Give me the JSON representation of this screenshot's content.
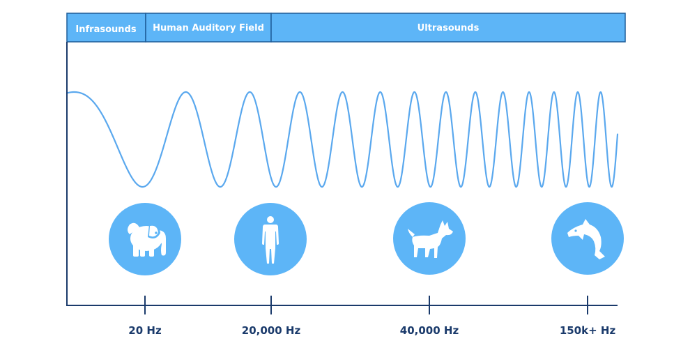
{
  "bands": [
    {
      "label": "Infrasounds"
    },
    {
      "label": "Human Auditory Field"
    },
    {
      "label": "Ultrasounds"
    }
  ],
  "ticks": [
    {
      "label": "20 Hz"
    },
    {
      "label": "20,000 Hz"
    },
    {
      "label": "40,000 Hz"
    },
    {
      "label": "150k+ Hz"
    }
  ],
  "icons": [
    {
      "name": "elephant-icon"
    },
    {
      "name": "human-icon"
    },
    {
      "name": "dog-icon"
    },
    {
      "name": "dolphin-icon"
    }
  ],
  "colors": {
    "band_fill": "#5db5f7",
    "band_border": "#1f5d99",
    "wave": "#5aa8ee",
    "axis": "#1a3a6b",
    "icon_circle": "#5db5f7",
    "icon_glyph": "#ffffff",
    "text": "#1a3a6b"
  }
}
